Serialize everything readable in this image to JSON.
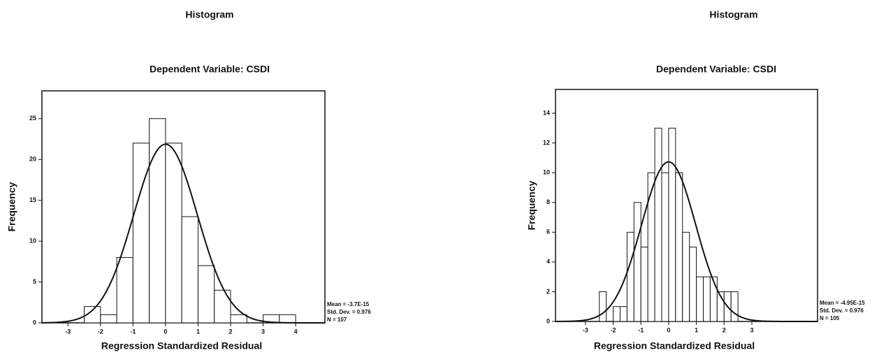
{
  "chart_data": [
    {
      "type": "histogram",
      "title": "Histogram",
      "subtitle": "Dependent Variable: CSDI",
      "x_label": "Regression Standardized Residual",
      "y_label": "Frequency",
      "bins": [
        -2.5,
        -2,
        -1.5,
        -1,
        -0.5,
        0,
        0.5,
        1,
        1.5,
        2,
        2.5,
        3,
        3.5,
        4
      ],
      "values": [
        2,
        1,
        8,
        22,
        25,
        22,
        13,
        7,
        4,
        1,
        0,
        1,
        1
      ],
      "color": "#ffffff",
      "xlim": [
        -3.8,
        4.9
      ],
      "ylim": [
        0,
        28.4
      ],
      "xticks": [
        -3,
        -2,
        -1,
        0,
        1,
        2,
        3,
        4
      ],
      "yticks": [
        0,
        5,
        10,
        15,
        20,
        25
      ],
      "normal_curve": {
        "mean": {
          "value": -3.7e-15,
          "label": "Mean = -3.7E-15"
        },
        "std": {
          "value": 0.976,
          "label": "Std. Dev. = 0.976"
        },
        "n": {
          "value": 107,
          "label": "N = 107"
        }
      }
    },
    {
      "type": "histogram",
      "title": "Histogram",
      "subtitle": "Dependent Variable: CSDI",
      "x_label": "Regression Standardized Residual",
      "y_label": "Frequency",
      "bins": [
        -2.5,
        -2.25,
        -2,
        -1.75,
        -1.5,
        -1.25,
        -1,
        -0.75,
        -0.5,
        -0.25,
        0,
        0.25,
        0.5,
        0.75,
        1,
        1.25,
        1.5,
        1.75,
        2,
        2.25,
        2.5
      ],
      "values": [
        2,
        0,
        1,
        1,
        6,
        8,
        5,
        10,
        13,
        10,
        13,
        10,
        6,
        5,
        3,
        3,
        3,
        2,
        2,
        2
      ],
      "color": "#ffffff",
      "xlim": [
        -4.08,
        5.37
      ],
      "ylim": [
        0,
        15.6
      ],
      "xticks": [
        -3,
        -2,
        -1,
        0,
        1,
        2,
        3
      ],
      "yticks": [
        0,
        2,
        4,
        6,
        8,
        10,
        12,
        14
      ],
      "normal_curve": {
        "mean": {
          "value": -4.95e-15,
          "label": "Mean = -4.95E-15"
        },
        "std": {
          "value": 0.976,
          "label": "Std. Dev. = 0.976"
        },
        "n": {
          "value": 105,
          "label": "N = 105"
        }
      }
    }
  ]
}
